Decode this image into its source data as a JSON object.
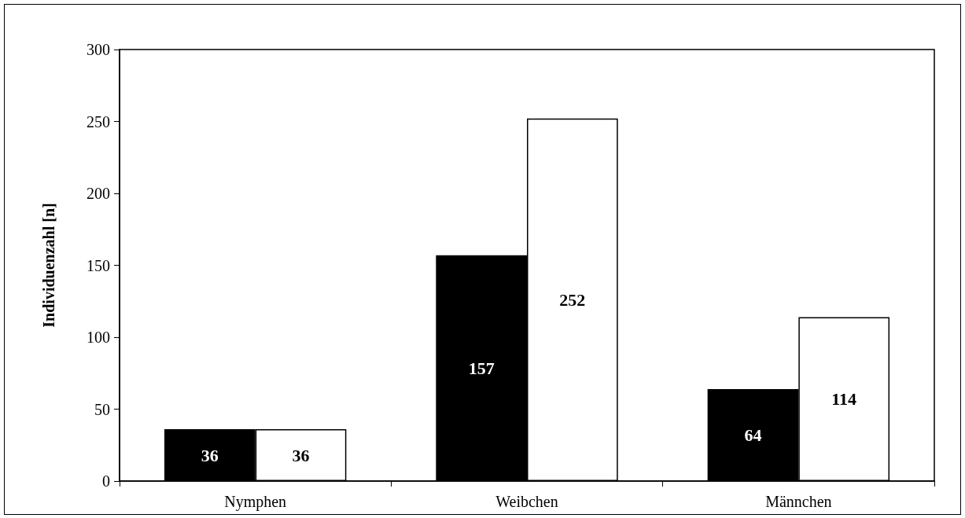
{
  "chart_data": {
    "type": "bar",
    "ylabel": "Individuenzahl [n]",
    "categories": [
      "Nymphen",
      "Weibchen",
      "Männchen"
    ],
    "series": [
      {
        "color": "#000000",
        "values": [
          36,
          157,
          64
        ]
      },
      {
        "color": "#ffffff",
        "values": [
          36,
          252,
          114
        ]
      }
    ],
    "ylim": [
      0,
      300
    ],
    "yticks": [
      0,
      50,
      100,
      150,
      200,
      250,
      300
    ],
    "data_labels": true
  }
}
